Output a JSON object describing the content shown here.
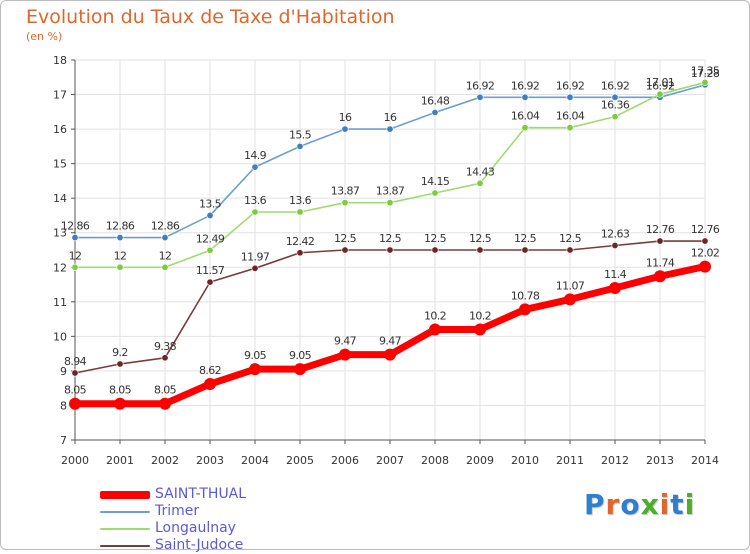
{
  "header": {
    "title": "Evolution du Taux de Taxe d'Habitation",
    "unit": "(en %)"
  },
  "logo": {
    "text": "Proxiti",
    "colors": [
      "#2f7fd0",
      "#e0662c",
      "#2f7fd0",
      "#4caf2a",
      "#e0662c",
      "#2f7fd0",
      "#4caf2a"
    ]
  },
  "chart_data": {
    "type": "line",
    "x": [
      "2000",
      "2001",
      "2002",
      "2003",
      "2004",
      "2005",
      "2006",
      "2007",
      "2008",
      "2009",
      "2010",
      "2011",
      "2012",
      "2013",
      "2014"
    ],
    "y_ticks": [
      "7",
      "8",
      "9",
      "10",
      "11",
      "12",
      "13",
      "14",
      "15",
      "16",
      "17",
      "18"
    ],
    "ylim": [
      7,
      18
    ],
    "grid": true,
    "legend_position": "bottom-left",
    "series": [
      {
        "name": "Trimer",
        "color": "#6b9fd4",
        "marker": "#3f7fbf",
        "values": [
          12.86,
          12.86,
          12.86,
          13.5,
          14.9,
          15.5,
          16,
          16,
          16.48,
          16.92,
          16.92,
          16.92,
          16.92,
          16.92,
          17.28
        ],
        "labels": [
          "12.86",
          "12.86",
          "12.86",
          "13.5",
          "14.9",
          "15.5",
          "16",
          "16",
          "16.48",
          "16.92",
          "16.92",
          "16.92",
          "16.92",
          "16.92",
          "17.28"
        ]
      },
      {
        "name": "Longaulnay",
        "color": "#9ddc6e",
        "marker": "#7ccc3e",
        "values": [
          12,
          12,
          12,
          12.49,
          13.6,
          13.6,
          13.87,
          13.87,
          14.15,
          14.43,
          16.04,
          16.04,
          16.36,
          17.01,
          17.35
        ],
        "labels": [
          "12",
          "12",
          "12",
          "12.49",
          "13.6",
          "13.6",
          "13.87",
          "13.87",
          "14.15",
          "14.43",
          "16.04",
          "16.04",
          "16.36",
          "17.01",
          "17.35"
        ]
      },
      {
        "name": "Saint-Judoce",
        "color": "#7a3b3b",
        "marker": "#6b2727",
        "values": [
          8.94,
          9.2,
          9.38,
          11.57,
          11.97,
          12.42,
          12.5,
          12.5,
          12.5,
          12.5,
          12.5,
          12.5,
          12.63,
          12.76,
          12.76
        ],
        "labels": [
          "8.94",
          "9.2",
          "9.38",
          "11.57",
          "11.97",
          "12.42",
          "12.5",
          "12.5",
          "12.5",
          "12.5",
          "12.5",
          "12.5",
          "12.63",
          "12.76",
          "12.76"
        ]
      },
      {
        "name": "SAINT-THUAL",
        "color": "#ff0000",
        "marker": "#ff0000",
        "values": [
          8.05,
          8.05,
          8.05,
          8.62,
          9.05,
          9.05,
          9.47,
          9.47,
          10.2,
          10.2,
          10.78,
          11.07,
          11.4,
          11.74,
          12.02
        ],
        "labels": [
          "8.05",
          "8.05",
          "8.05",
          "8.62",
          "9.05",
          "9.05",
          "9.47",
          "9.47",
          "10.2",
          "10.2",
          "10.78",
          "11.07",
          "11.4",
          "11.74",
          "12.02"
        ]
      }
    ],
    "legend": [
      {
        "name": "SAINT-THUAL",
        "color": "#ff0000"
      },
      {
        "name": "Trimer",
        "color": "#6b9fd4"
      },
      {
        "name": "Longaulnay",
        "color": "#9ddc6e"
      },
      {
        "name": "Saint-Judoce",
        "color": "#7a3b3b"
      }
    ]
  }
}
